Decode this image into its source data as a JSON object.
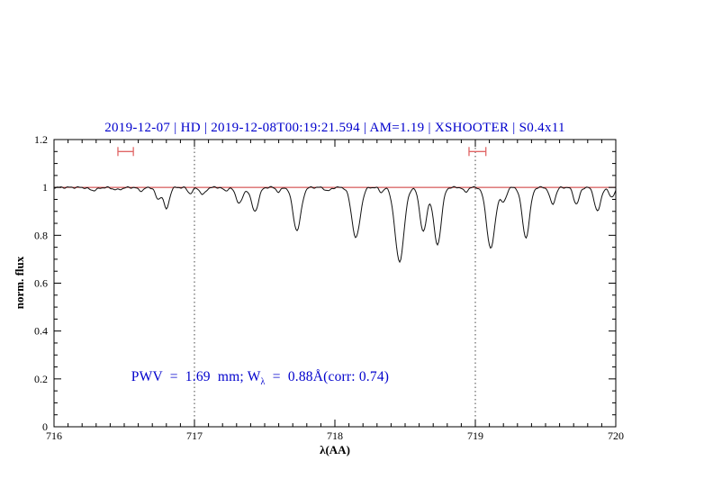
{
  "chart_data": {
    "type": "line",
    "title": "2019-12-07 | HD | 2019-12-08T00:19:21.594 | AM=1.19 | XSHOOTER | S0.4x11",
    "title_color": "#0000cc",
    "xlabel": "λ(AA)",
    "ylabel": "norm. flux",
    "xlim": [
      716,
      720
    ],
    "ylim": [
      0,
      1.2
    ],
    "x_ticks": [
      716,
      717,
      718,
      719,
      720
    ],
    "x_tick_labels": [
      "716",
      "717",
      "718",
      "719",
      "720"
    ],
    "y_ticks": [
      0,
      0.2,
      0.4,
      0.6,
      0.8,
      1.0,
      1.2
    ],
    "y_tick_labels": [
      "0",
      "0.2",
      "0.4",
      "0.6",
      "0.8",
      "1",
      "1.2"
    ],
    "x_minor_step": 0.1,
    "y_minor_step": 0.05,
    "grid": false,
    "legend": null,
    "dotted_vlines": [
      717,
      719
    ],
    "vline_color": "#444444",
    "continuum_line": {
      "y": 1.0,
      "color": "#cc3333"
    },
    "range_markers": [
      {
        "x1": 716.455,
        "x2": 716.565,
        "y": 1.15
      },
      {
        "x1": 718.955,
        "x2": 719.075,
        "y": 1.15
      }
    ],
    "marker_color": "#e06666",
    "spectrum_color": "#111111",
    "continuum": 1.0,
    "noise_amplitude": 0.004,
    "absorption_lines": [
      [
        716.28,
        0.012,
        0.03
      ],
      [
        716.45,
        0.01,
        0.03
      ],
      [
        716.62,
        0.014,
        0.02
      ],
      [
        716.74,
        0.05,
        0.018
      ],
      [
        716.8,
        0.09,
        0.02
      ],
      [
        716.97,
        0.025,
        0.018
      ],
      [
        717.06,
        0.03,
        0.02
      ],
      [
        717.22,
        0.015,
        0.015
      ],
      [
        717.32,
        0.065,
        0.025
      ],
      [
        717.43,
        0.1,
        0.025
      ],
      [
        717.6,
        0.02,
        0.015
      ],
      [
        717.73,
        0.18,
        0.028
      ],
      [
        717.95,
        0.015,
        0.02
      ],
      [
        718.15,
        0.21,
        0.03
      ],
      [
        718.33,
        0.02,
        0.015
      ],
      [
        718.46,
        0.31,
        0.032
      ],
      [
        718.63,
        0.185,
        0.025
      ],
      [
        718.73,
        0.24,
        0.027
      ],
      [
        718.93,
        0.02,
        0.015
      ],
      [
        719.11,
        0.255,
        0.03
      ],
      [
        719.2,
        0.06,
        0.02
      ],
      [
        719.36,
        0.21,
        0.026
      ],
      [
        719.55,
        0.07,
        0.02
      ],
      [
        719.72,
        0.07,
        0.02
      ],
      [
        719.87,
        0.1,
        0.022
      ],
      [
        719.97,
        0.04,
        0.02
      ]
    ],
    "annotation": {
      "prefix": "PWV  =  1.69  mm; W",
      "sub": "λ",
      "suffix": "  =  0.88Å(corr: 0.74)",
      "color": "#0000cc",
      "x": 716.55,
      "y": 0.215
    }
  }
}
